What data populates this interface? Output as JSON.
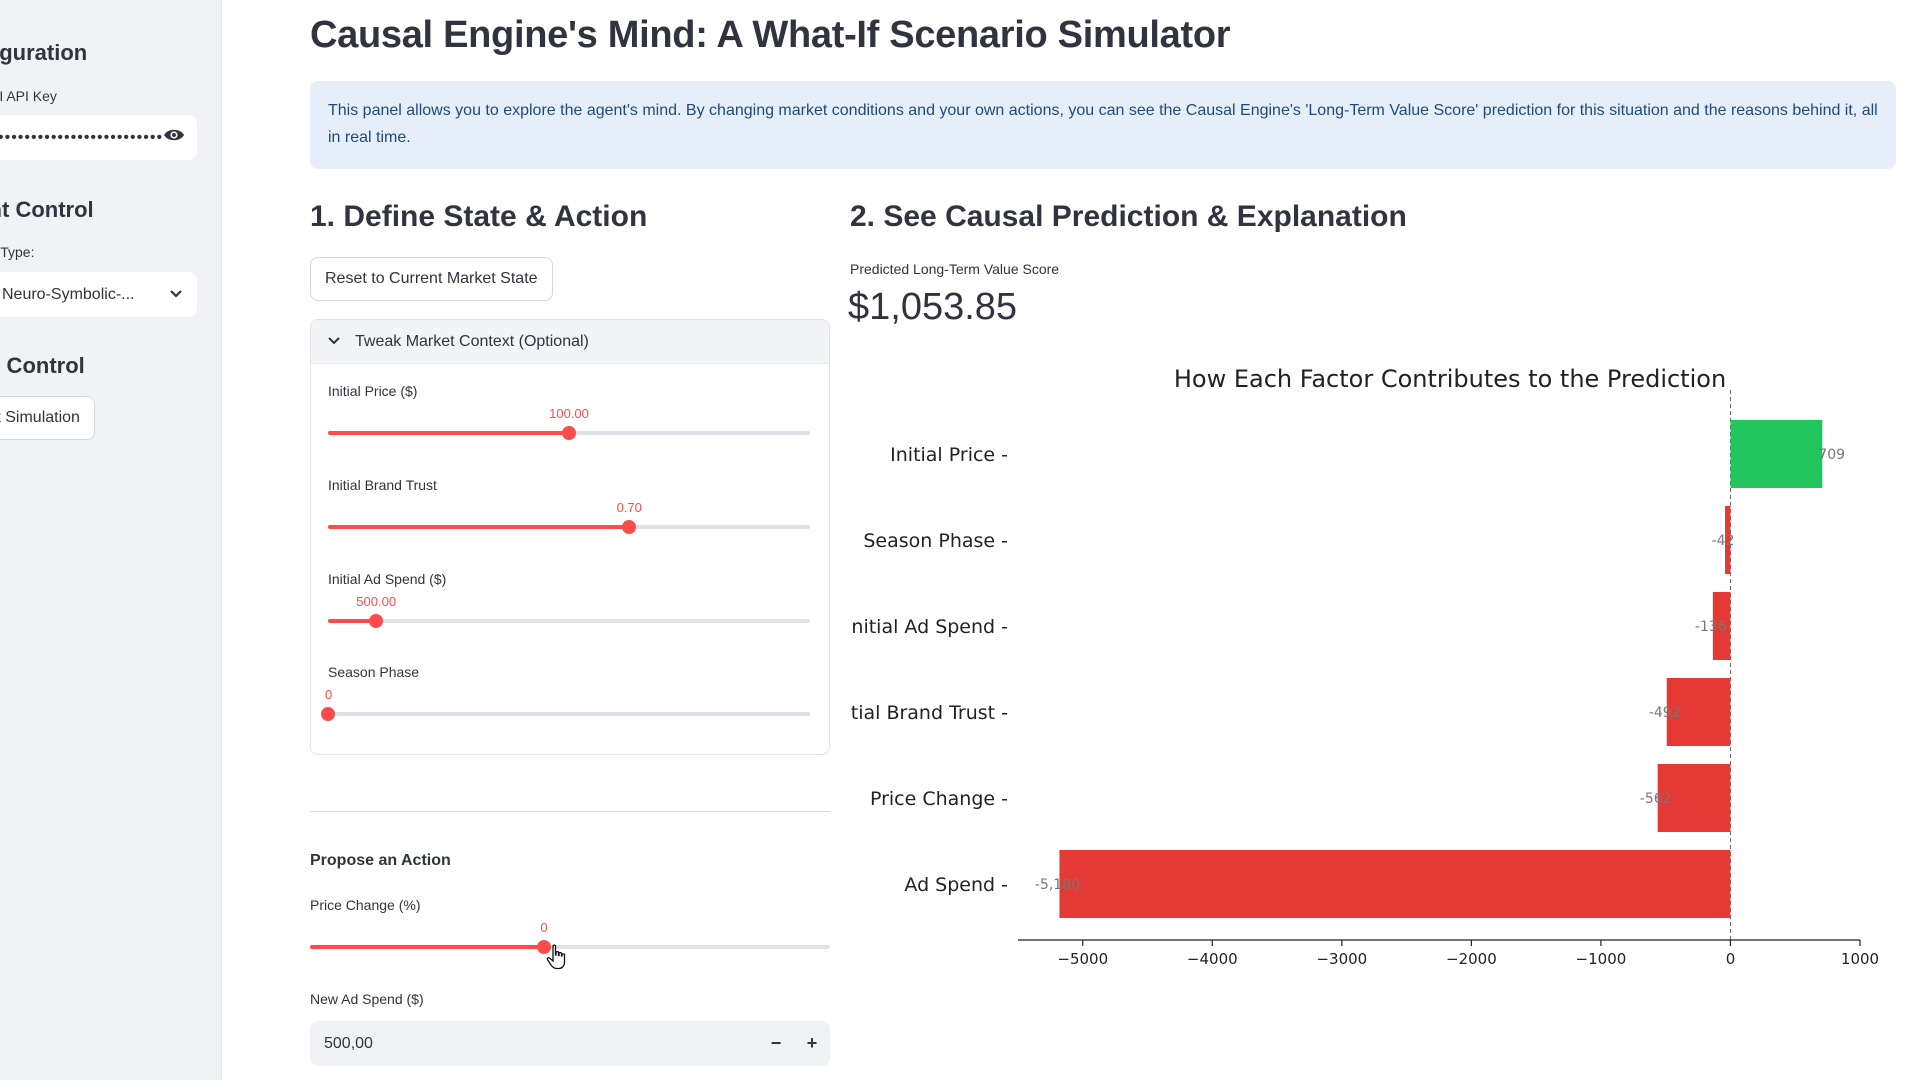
{
  "sidebar": {
    "config_heading": "Configuration",
    "api_key_label": "AI API Key",
    "api_key_value": "••••••••••••••••••••••••••••••",
    "agent_heading": "Agent Control",
    "agent_type_label": "Agent Type:",
    "agent_type_value": "Neuro-Symbolic-...",
    "simulation_heading": "Simulation Control",
    "simulation_button": "Start Simulation"
  },
  "header": {
    "title": "Causal Engine's Mind: A What-If Scenario Simulator",
    "info": "This panel allows you to explore the agent's mind. By changing market conditions and your own actions, you can see the Causal Engine's 'Long-Term Value Score' prediction for this situation and the reasons behind it, all in real time."
  },
  "left": {
    "heading": "1. Define State & Action",
    "reset_button": "Reset to Current Market State",
    "expander_title": "Tweak Market Context (Optional)",
    "sliders": [
      {
        "label": "Initial Price ($)",
        "value_text": "100.00",
        "fraction": 0.5
      },
      {
        "label": "Initial Brand Trust",
        "value_text": "0.70",
        "fraction": 0.625
      },
      {
        "label": "Initial Ad Spend ($)",
        "value_text": "500.00",
        "fraction": 0.1
      },
      {
        "label": "Season Phase",
        "value_text": "0",
        "fraction": 0.0
      }
    ],
    "action_heading": "Propose an Action",
    "price_change": {
      "label": "Price Change (%)",
      "value_text": "0",
      "fraction": 0.45
    },
    "ad_spend": {
      "label": "New Ad Spend ($)",
      "value": "500,00",
      "minus": "−",
      "plus": "+"
    }
  },
  "right": {
    "heading": "2. See Causal Prediction & Explanation",
    "metric_label": "Predicted Long-Term Value Score",
    "metric_value": "$1,053.85"
  },
  "colors": {
    "accent": "#ff4b4b",
    "positive": "#22c55e",
    "negative": "#e53935"
  },
  "chart_data": {
    "type": "bar",
    "orientation": "horizontal",
    "title": "How Each Factor Contributes to the Prediction",
    "categories": [
      "Initial Price",
      "Season Phase",
      "Initial Ad Spend",
      "Initial Brand Trust",
      "Price Change",
      "Ad Spend"
    ],
    "values": [
      709,
      -42,
      -136,
      -492,
      -562,
      -5180
    ],
    "data_labels": [
      "709",
      "-42",
      "-136",
      "-492",
      "-562",
      "-5,180"
    ],
    "xlim": [
      -5500,
      1000
    ],
    "xticks": [
      -5000,
      -4000,
      -3000,
      -2000,
      -1000,
      0,
      1000
    ],
    "xtick_labels": [
      "−5000",
      "−4000",
      "−3000",
      "−2000",
      "−1000",
      "0",
      "1000"
    ],
    "grid": false
  }
}
